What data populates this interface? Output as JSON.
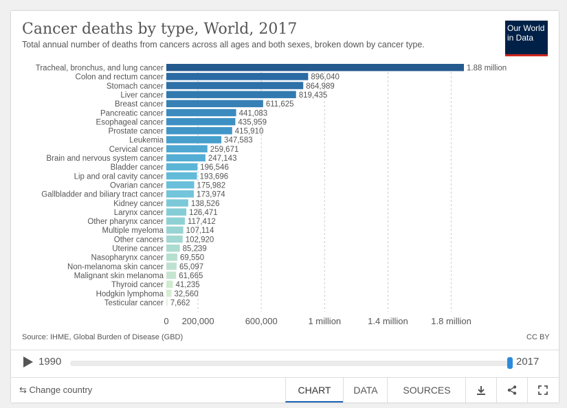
{
  "header": {
    "title": "Cancer deaths by type, World, 2017",
    "subtitle": "Total annual number of deaths from cancers across all ages and both sexes, broken down by cancer type.",
    "logo_line1": "Our World",
    "logo_line2": "in Data"
  },
  "chart_data": {
    "type": "bar",
    "orientation": "horizontal",
    "title": "Cancer deaths by type, World, 2017",
    "categories": [
      "Tracheal, bronchus, and lung cancer",
      "Colon and rectum cancer",
      "Stomach cancer",
      "Liver cancer",
      "Breast cancer",
      "Pancreatic cancer",
      "Esophageal cancer",
      "Prostate cancer",
      "Leukemia",
      "Cervical cancer",
      "Brain and nervous system cancer",
      "Bladder cancer",
      "Lip and oral cavity cancer",
      "Ovarian cancer",
      "Gallbladder and biliary tract cancer",
      "Kidney cancer",
      "Larynx cancer",
      "Other pharynx cancer",
      "Multiple myeloma",
      "Other cancers",
      "Uterine cancer",
      "Nasopharynx cancer",
      "Non-melanoma skin cancer",
      "Malignant skin melanoma",
      "Thyroid cancer",
      "Hodgkin lymphoma",
      "Testicular cancer"
    ],
    "values": [
      1880000,
      896040,
      864989,
      819435,
      611625,
      441083,
      435959,
      415910,
      347583,
      259671,
      247143,
      196546,
      193696,
      175982,
      173974,
      138526,
      126471,
      117412,
      107114,
      102920,
      85239,
      69550,
      65097,
      61665,
      41235,
      32560,
      7662
    ],
    "value_labels": [
      "1.88 million",
      "896,040",
      "864,989",
      "819,435",
      "611,625",
      "441,083",
      "435,959",
      "415,910",
      "347,583",
      "259,671",
      "247,143",
      "196,546",
      "193,696",
      "175,982",
      "173,974",
      "138,526",
      "126,471",
      "117,412",
      "107,114",
      "102,920",
      "85,239",
      "69,550",
      "65,097",
      "61,665",
      "41,235",
      "32,560",
      "7,662"
    ],
    "x_ticks": [
      0,
      200000,
      600000,
      1000000,
      1400000,
      1800000
    ],
    "x_tick_labels": [
      "0",
      "200,000",
      "600,000",
      "1 million",
      "1.4 million",
      "1.8 million"
    ],
    "xlim": [
      0,
      1880000
    ],
    "grid": true,
    "colors": [
      "#255a8f",
      "#2b6aa3",
      "#2e70a8",
      "#3279b0",
      "#3680b6",
      "#3b8bbf",
      "#3d90c3",
      "#4196c8",
      "#469ecc",
      "#4ea7d0",
      "#54add4",
      "#5bb5d7",
      "#62bbd9",
      "#6ac0da",
      "#72c5da",
      "#7bc9d8",
      "#85cdd6",
      "#8ed1d5",
      "#98d4d3",
      "#a2d8d1",
      "#acdbd0",
      "#b5dfcf",
      "#bee2cf",
      "#c6e5d0",
      "#ceeacf",
      "#d5edd2",
      "#dcf0d6"
    ]
  },
  "source": "Source: IHME, Global Burden of Disease (GBD)",
  "license": "CC BY",
  "timeline": {
    "start": "1990",
    "end": "2017",
    "position": 1.0
  },
  "footer": {
    "change_country": "Change country",
    "tabs": [
      "CHART",
      "DATA",
      "SOURCES"
    ],
    "active_tab": "CHART"
  }
}
